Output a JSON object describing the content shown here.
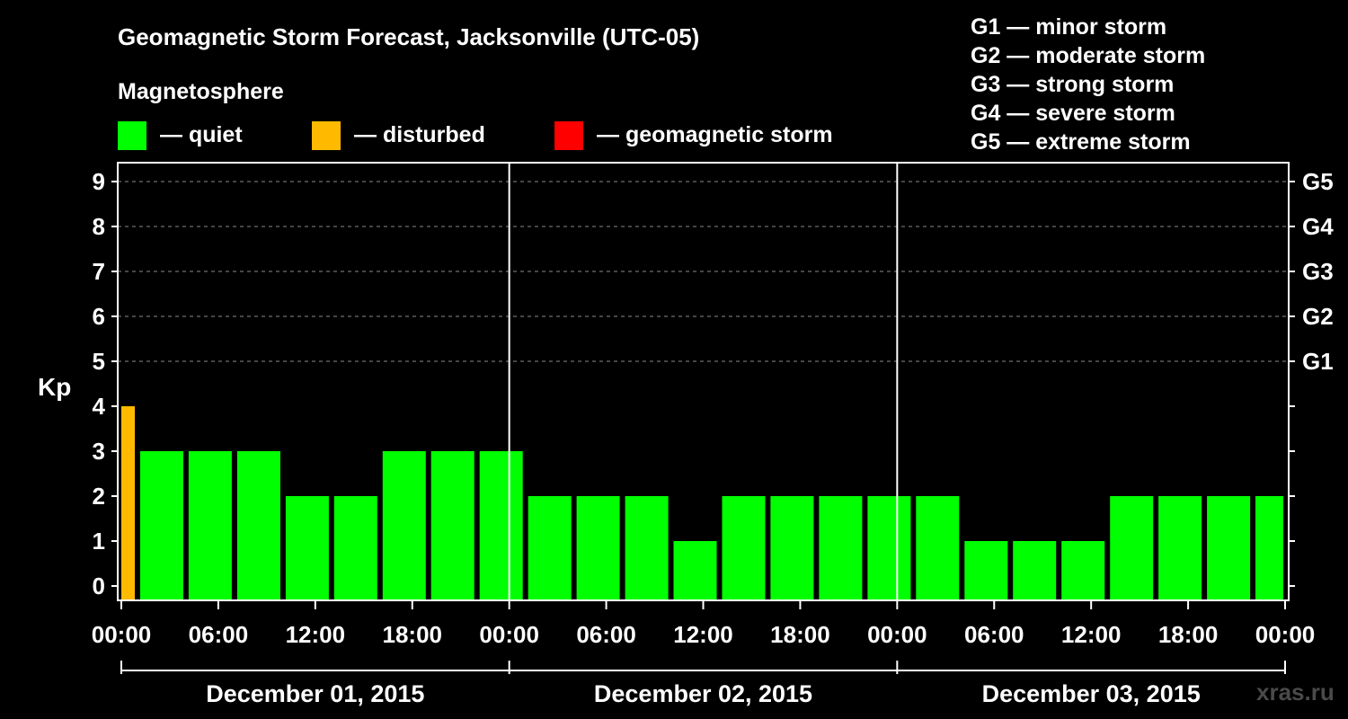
{
  "chart_data": {
    "type": "bar",
    "title": "Geomagnetic Storm Forecast, Jacksonville (UTC-05)",
    "ylabel": "Kp",
    "ylim": [
      0,
      9
    ],
    "y_ticks": [
      "0",
      "1",
      "2",
      "3",
      "4",
      "5",
      "6",
      "7",
      "8",
      "9"
    ],
    "right_ticks": [
      {
        "kp": 5,
        "label": "G1"
      },
      {
        "kp": 6,
        "label": "G2"
      },
      {
        "kp": 7,
        "label": "G3"
      },
      {
        "kp": 8,
        "label": "G4"
      },
      {
        "kp": 9,
        "label": "G5"
      }
    ],
    "x_ticks": [
      "00:00",
      "06:00",
      "12:00",
      "18:00",
      "00:00",
      "06:00",
      "12:00",
      "18:00",
      "00:00",
      "06:00",
      "12:00",
      "18:00",
      "00:00"
    ],
    "days": [
      "December 01, 2015",
      "December 02, 2015",
      "December 03, 2015"
    ],
    "bar_interval_hours": 3,
    "first_bar_partial_hours": 1,
    "values": [
      4,
      3,
      3,
      3,
      2,
      2,
      3,
      3,
      3,
      2,
      2,
      2,
      1,
      2,
      2,
      2,
      2,
      2,
      1,
      1,
      1,
      2,
      2,
      2,
      2
    ],
    "colors": {
      "quiet": "#00ff00",
      "disturbed": "#ffba00",
      "storm": "#ff0000"
    },
    "legend": {
      "section_title": "Magnetosphere",
      "items": [
        {
          "key": "quiet",
          "label": "— quiet"
        },
        {
          "key": "disturbed",
          "label": "— disturbed"
        },
        {
          "key": "storm",
          "label": "— geomagnetic storm"
        }
      ]
    },
    "storm_scale": [
      "G1 — minor storm",
      "G2 — moderate storm",
      "G3 — strong storm",
      "G4 — severe storm",
      "G5 — extreme storm"
    ],
    "watermark": "xras.ru"
  }
}
